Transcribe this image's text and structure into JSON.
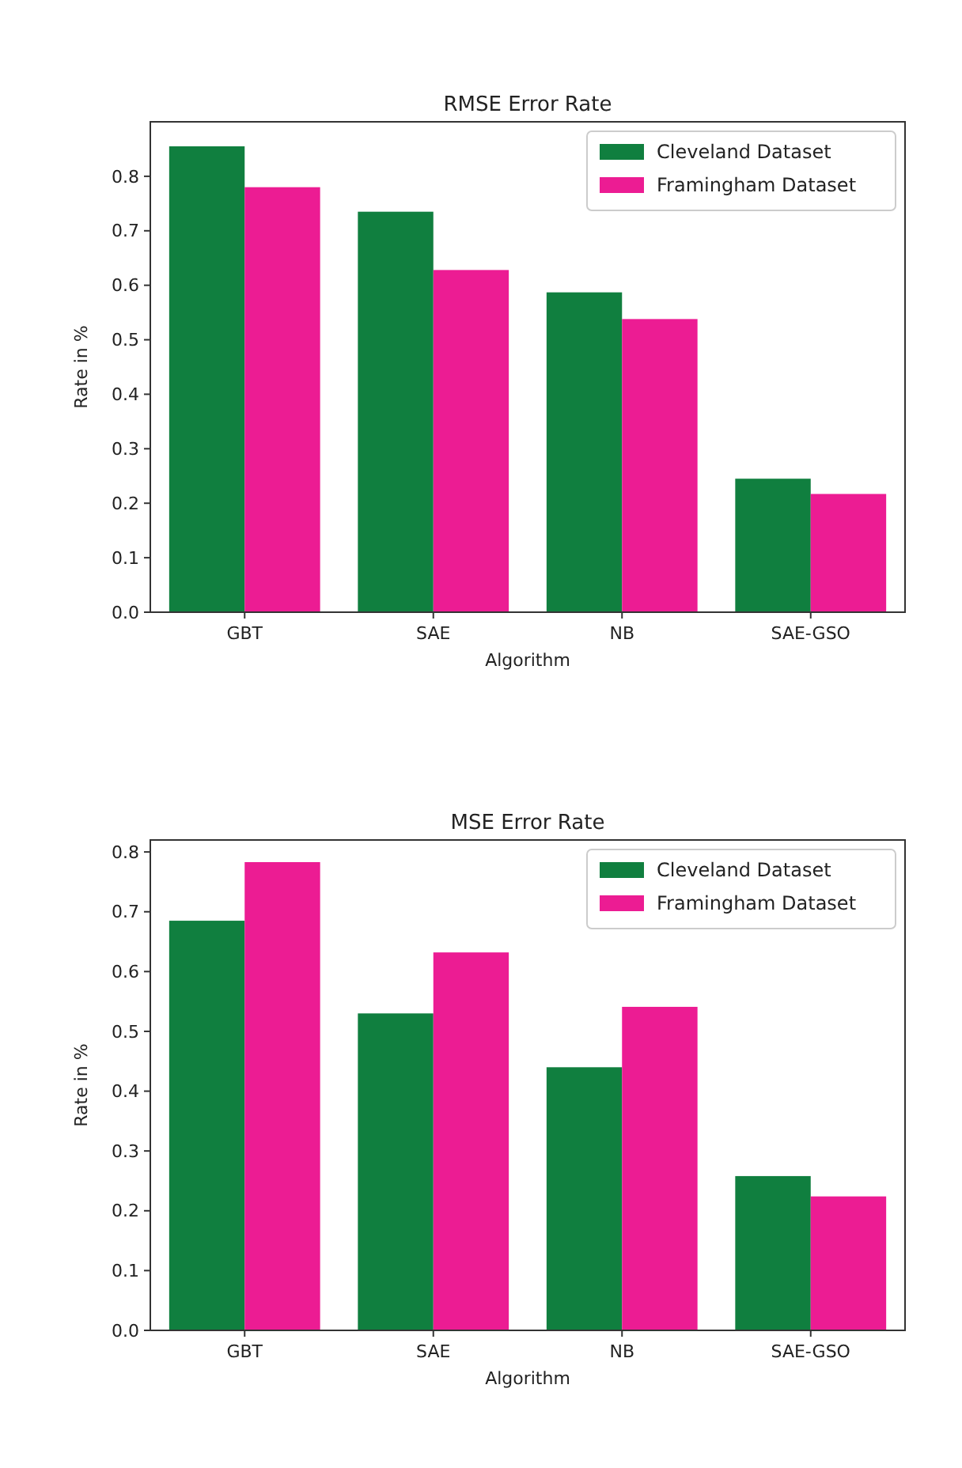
{
  "chart_data": [
    {
      "type": "bar",
      "title": "RMSE Error Rate",
      "xlabel": "Algorithm",
      "ylabel": "Rate in %",
      "categories": [
        "GBT",
        "SAE",
        "NB",
        "SAE-GSO"
      ],
      "series": [
        {
          "name": "Cleveland Dataset",
          "color": "#107f3f",
          "values": [
            0.855,
            0.735,
            0.587,
            0.245
          ]
        },
        {
          "name": "Framingham Dataset",
          "color": "#ec1c93",
          "values": [
            0.78,
            0.628,
            0.538,
            0.217
          ]
        }
      ],
      "ylim": [
        0,
        0.9
      ],
      "yticks": [
        {
          "value": 0,
          "label": "0.0"
        },
        0.1,
        0.2,
        0.3,
        0.4,
        0.5,
        0.6,
        0.7,
        0.8
      ],
      "grid": false,
      "legend": "top right"
    },
    {
      "type": "bar",
      "title": "MSE Error Rate",
      "xlabel": "Algorithm",
      "ylabel": "Rate in %",
      "categories": [
        "GBT",
        "SAE",
        "NB",
        "SAE-GSO"
      ],
      "series": [
        {
          "name": "Cleveland Dataset",
          "color": "#107f3f",
          "values": [
            0.685,
            0.53,
            0.44,
            0.258
          ]
        },
        {
          "name": "Framingham Dataset",
          "color": "#ec1c93",
          "values": [
            0.783,
            0.632,
            0.541,
            0.224
          ]
        }
      ],
      "ylim": [
        0,
        0.82
      ],
      "yticks": [
        {
          "value": 0,
          "label": "0.0"
        },
        0.1,
        0.2,
        0.3,
        0.4,
        0.5,
        0.6,
        0.7,
        0.8
      ],
      "grid": false,
      "legend": "top right"
    }
  ]
}
